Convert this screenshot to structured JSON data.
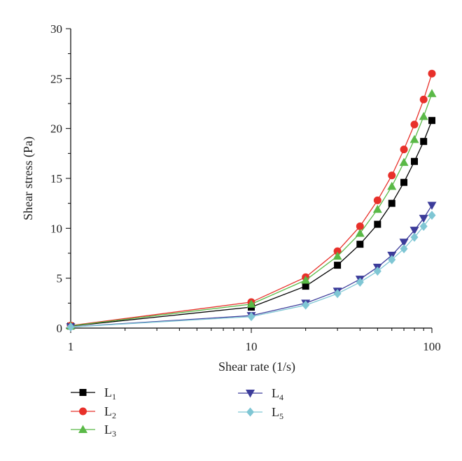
{
  "chart_data": {
    "type": "line",
    "xlabel": "Shear rate (1/s)",
    "ylabel": "Shear stress (Pa)",
    "xscale": "log",
    "xlim": [
      1,
      100
    ],
    "ylim": [
      0,
      30
    ],
    "xticks": [
      1,
      10,
      100
    ],
    "yticks": [
      0,
      5,
      10,
      15,
      20,
      25,
      30
    ],
    "grid": false,
    "legend_position": "bottom",
    "series": [
      {
        "name": "L",
        "sub": "1",
        "color": "#000000",
        "marker": "square",
        "x": [
          1,
          10,
          20,
          30,
          40,
          50,
          60,
          70,
          80,
          90,
          100
        ],
        "y": [
          0.2,
          2.1,
          4.2,
          6.3,
          8.4,
          10.4,
          12.5,
          14.6,
          16.7,
          18.7,
          20.8
        ]
      },
      {
        "name": "L",
        "sub": "2",
        "color": "#e8302a",
        "marker": "circle",
        "x": [
          1,
          10,
          20,
          30,
          40,
          50,
          60,
          70,
          80,
          90,
          100
        ],
        "y": [
          0.25,
          2.6,
          5.1,
          7.7,
          10.2,
          12.8,
          15.3,
          17.9,
          20.4,
          22.9,
          25.5
        ]
      },
      {
        "name": "L",
        "sub": "3",
        "color": "#5ab947",
        "marker": "triangle-up",
        "x": [
          1,
          10,
          20,
          30,
          40,
          50,
          60,
          70,
          80,
          90,
          100
        ],
        "y": [
          0.22,
          2.4,
          4.8,
          7.2,
          9.5,
          11.9,
          14.2,
          16.6,
          18.9,
          21.2,
          23.5
        ]
      },
      {
        "name": "L",
        "sub": "4",
        "color": "#3c3c9a",
        "marker": "triangle-down",
        "x": [
          1,
          10,
          20,
          30,
          40,
          50,
          60,
          70,
          80,
          90,
          100
        ],
        "y": [
          0.12,
          1.25,
          2.5,
          3.7,
          4.9,
          6.1,
          7.3,
          8.6,
          9.8,
          11.0,
          12.3
        ]
      },
      {
        "name": "L",
        "sub": "5",
        "color": "#7fc6d4",
        "marker": "diamond",
        "x": [
          1,
          10,
          20,
          30,
          40,
          50,
          60,
          70,
          80,
          90,
          100
        ],
        "y": [
          0.11,
          1.15,
          2.3,
          3.45,
          4.6,
          5.7,
          6.85,
          7.95,
          9.1,
          10.2,
          11.3
        ]
      }
    ]
  }
}
